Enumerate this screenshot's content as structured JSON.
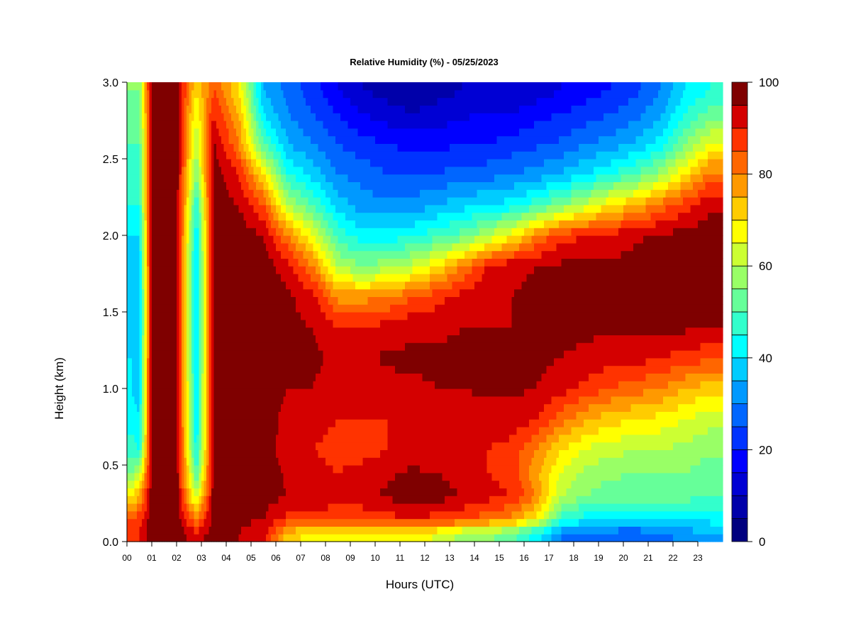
{
  "chart_data": {
    "type": "heatmap",
    "title": "Relative Humidity (%) - 05/25/2023",
    "xlabel": "Hours (UTC)",
    "ylabel": "Height (km)",
    "x_range": [
      0,
      24
    ],
    "y_range": [
      0,
      3.0
    ],
    "x_tick_labels": [
      "00",
      "01",
      "02",
      "03",
      "04",
      "05",
      "06",
      "07",
      "08",
      "09",
      "10",
      "11",
      "12",
      "13",
      "14",
      "15",
      "16",
      "17",
      "18",
      "19",
      "20",
      "21",
      "22",
      "23"
    ],
    "y_tick_labels": [
      "0.0",
      "0.5",
      "1.0",
      "1.5",
      "2.0",
      "2.5",
      "3.0"
    ],
    "y_tick_values": [
      0,
      0.5,
      1.0,
      1.5,
      2.0,
      2.5,
      3.0
    ],
    "colorbar": {
      "range": [
        0,
        100
      ],
      "tick_labels": [
        "0",
        "20",
        "40",
        "60",
        "80",
        "100"
      ],
      "tick_values": [
        0,
        20,
        40,
        60,
        80,
        100
      ],
      "levels": 20,
      "colors": [
        "#00007F",
        "#0000AA",
        "#0000D4",
        "#0000FF",
        "#0033FF",
        "#0066FF",
        "#0099FF",
        "#00CCFF",
        "#00FFFF",
        "#33FFCC",
        "#66FF99",
        "#99FF66",
        "#CCFF33",
        "#FFFF00",
        "#FFCC00",
        "#FF9900",
        "#FF6600",
        "#FF3300",
        "#D40000",
        "#7F0000"
      ]
    },
    "heights_km": [
      0.05,
      0.15,
      0.3,
      0.45,
      0.6,
      0.8,
      1.0,
      1.2,
      1.4,
      1.6,
      1.8,
      2.0,
      2.2,
      2.4,
      2.6,
      2.8,
      2.95
    ],
    "hours": [
      0.2,
      0.5,
      1.0,
      2.0,
      2.8,
      3.5,
      4.5,
      5.5,
      6.5,
      7.5,
      8.5,
      9.5,
      10.5,
      11.5,
      12.5,
      13.5,
      14.5,
      15.5,
      16.5,
      17.5,
      18.5,
      19.5,
      20.5,
      21.5,
      22.5,
      23.5
    ],
    "rh_profiles": [
      {
        "hour": 0.2,
        "rh": [
          88,
          85,
          70,
          55,
          48,
          42,
          40,
          40,
          38,
          38,
          38,
          40,
          45,
          48,
          50,
          52,
          55
        ]
      },
      {
        "hour": 0.5,
        "rh": [
          90,
          88,
          75,
          60,
          45,
          40,
          38,
          38,
          36,
          36,
          38,
          40,
          45,
          48,
          50,
          52,
          55
        ]
      },
      {
        "hour": 1.0,
        "rh": [
          98,
          98,
          98,
          98,
          98,
          98,
          98,
          98,
          98,
          98,
          98,
          98,
          98,
          98,
          98,
          98,
          98
        ]
      },
      {
        "hour": 2.0,
        "rh": [
          98,
          98,
          98,
          98,
          98,
          98,
          98,
          98,
          98,
          98,
          98,
          98,
          98,
          98,
          98,
          98,
          98
        ]
      },
      {
        "hour": 2.8,
        "rh": [
          92,
          80,
          60,
          50,
          42,
          40,
          40,
          38,
          38,
          38,
          38,
          40,
          45,
          55,
          60,
          65,
          70
        ]
      },
      {
        "hour": 3.5,
        "rh": [
          98,
          98,
          98,
          98,
          98,
          98,
          98,
          98,
          98,
          98,
          98,
          98,
          98,
          98,
          96,
          90,
          85
        ]
      },
      {
        "hour": 4.5,
        "rh": [
          95,
          96,
          97,
          98,
          98,
          98,
          98,
          98,
          98,
          98,
          98,
          98,
          95,
          90,
          80,
          75,
          70
        ]
      },
      {
        "hour": 5.5,
        "rh": [
          92,
          95,
          97,
          98,
          98,
          98,
          98,
          98,
          98,
          98,
          98,
          95,
          85,
          70,
          50,
          40,
          35
        ]
      },
      {
        "hour": 6.5,
        "rh": [
          72,
          88,
          95,
          94,
          92,
          93,
          95,
          96,
          96,
          96,
          92,
          80,
          60,
          45,
          35,
          30,
          28
        ]
      },
      {
        "hour": 7.5,
        "rh": [
          68,
          88,
          95,
          92,
          90,
          92,
          95,
          96,
          95,
          92,
          80,
          65,
          50,
          38,
          30,
          25,
          22
        ]
      },
      {
        "hour": 8.5,
        "rh": [
          66,
          86,
          92,
          90,
          88,
          90,
          92,
          94,
          90,
          78,
          60,
          48,
          38,
          30,
          25,
          20,
          15
        ]
      },
      {
        "hour": 9.5,
        "rh": [
          66,
          86,
          94,
          92,
          88,
          90,
          92,
          94,
          90,
          78,
          55,
          42,
          32,
          28,
          22,
          15,
          10
        ]
      },
      {
        "hour": 10.5,
        "rh": [
          66,
          88,
          96,
          94,
          90,
          90,
          93,
          96,
          92,
          80,
          58,
          42,
          32,
          25,
          20,
          12,
          8
        ]
      },
      {
        "hour": 11.5,
        "rh": [
          68,
          90,
          98,
          96,
          92,
          91,
          94,
          96,
          94,
          85,
          62,
          44,
          32,
          25,
          18,
          10,
          6
        ]
      },
      {
        "hour": 12.5,
        "rh": [
          64,
          88,
          97,
          95,
          91,
          92,
          95,
          96,
          94,
          88,
          70,
          48,
          35,
          25,
          18,
          12,
          8
        ]
      },
      {
        "hour": 13.5,
        "rh": [
          58,
          86,
          95,
          93,
          90,
          92,
          95,
          96,
          95,
          92,
          80,
          52,
          38,
          28,
          20,
          14,
          10
        ]
      },
      {
        "hour": 14.5,
        "rh": [
          56,
          82,
          92,
          90,
          90,
          93,
          96,
          96,
          95,
          94,
          90,
          60,
          40,
          28,
          20,
          15,
          10
        ]
      },
      {
        "hour": 15.5,
        "rh": [
          52,
          78,
          90,
          88,
          88,
          93,
          96,
          96,
          95,
          95,
          94,
          68,
          42,
          30,
          22,
          15,
          10
        ]
      },
      {
        "hour": 16.5,
        "rh": [
          42,
          68,
          80,
          76,
          80,
          90,
          95,
          96,
          96,
          96,
          95,
          80,
          48,
          32,
          24,
          18,
          12
        ]
      },
      {
        "hour": 17.5,
        "rh": [
          30,
          48,
          60,
          65,
          70,
          82,
          92,
          95,
          96,
          96,
          96,
          88,
          55,
          36,
          26,
          20,
          15
        ]
      },
      {
        "hour": 18.5,
        "rh": [
          28,
          42,
          55,
          58,
          64,
          76,
          88,
          94,
          96,
          97,
          96,
          90,
          62,
          40,
          30,
          22,
          18
        ]
      },
      {
        "hour": 19.5,
        "rh": [
          27,
          40,
          52,
          56,
          62,
          72,
          85,
          92,
          96,
          97,
          96,
          92,
          70,
          45,
          32,
          25,
          20
        ]
      },
      {
        "hour": 20.5,
        "rh": [
          26,
          40,
          52,
          55,
          60,
          70,
          82,
          92,
          96,
          97,
          97,
          94,
          75,
          50,
          36,
          28,
          24
        ]
      },
      {
        "hour": 21.5,
        "rh": [
          28,
          42,
          52,
          55,
          60,
          68,
          80,
          90,
          96,
          98,
          98,
          96,
          82,
          58,
          42,
          34,
          30
        ]
      },
      {
        "hour": 22.5,
        "rh": [
          32,
          42,
          52,
          55,
          58,
          65,
          75,
          88,
          96,
          98,
          98,
          97,
          88,
          70,
          55,
          45,
          40
        ]
      },
      {
        "hour": 23.5,
        "rh": [
          34,
          42,
          50,
          52,
          56,
          62,
          72,
          86,
          95,
          98,
          98,
          98,
          94,
          82,
          65,
          52,
          45
        ]
      }
    ]
  }
}
